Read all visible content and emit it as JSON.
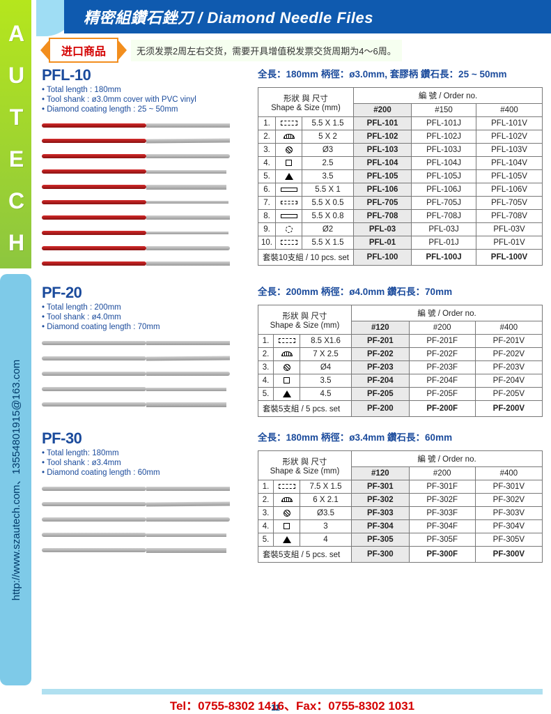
{
  "brand": "AUTECH",
  "brand_colors": {
    "top": "#b5e61d",
    "bottom": "#8dc63f",
    "text": "#ffffff"
  },
  "contact_vert": "http://www.szautech.com、13554801915@163.com",
  "contact_bg": "#7ecae8",
  "header_title": "精密組鑽石銼刀 / Diamond Needle Files",
  "header_bg": "#0f5aaf",
  "ribbon_label": "进口商品",
  "notice_text": "无须发票2周左右交货，需要开具增值税发票交货周期为4～6周。",
  "shape_header": "形狀 與 尺寸\nShape & Size (mm)",
  "order_header": "編 號 / Order no.",
  "page_number": "11",
  "footer_tel": "Tel：0755-8302 1416、Fax：0755-8302 1031",
  "colors": {
    "brand_blue": "#1b4b9c",
    "border": "#777777",
    "grey_fill": "#eaeaea",
    "handle_red": "#c32020",
    "handle_grey": "#b0b0b0"
  },
  "products": [
    {
      "name": "PFL-10",
      "specs": [
        "• Total length : 180mm",
        "• Tool shank : ø3.0mm cover with PVC vinyl",
        "• Diamond coating length : 25 ~ 50mm"
      ],
      "headline": "全長：180mm  柄徑：ø3.0mm, 套膠柄  鑽石長：25 ~ 50mm",
      "handle_color": "red",
      "file_count": 10,
      "grit_cols": [
        "#200",
        "#150",
        "#400"
      ],
      "rows": [
        {
          "n": "1.",
          "shape": "s-dashbox",
          "size": "5.5 X 1.5",
          "codes": [
            "PFL-101",
            "PFL-101J",
            "PFL-101V"
          ]
        },
        {
          "n": "2.",
          "shape": "s-half",
          "size": "5 X 2",
          "codes": [
            "PFL-102",
            "PFL-102J",
            "PFL-102V"
          ]
        },
        {
          "n": "3.",
          "shape": "s-round",
          "size": "Ø3",
          "codes": [
            "PFL-103",
            "PFL-103J",
            "PFL-103V"
          ]
        },
        {
          "n": "4.",
          "shape": "s-square",
          "size": "2.5",
          "codes": [
            "PFL-104",
            "PFL-104J",
            "PFL-104V"
          ]
        },
        {
          "n": "5.",
          "shape": "s-tri",
          "size": "3.5",
          "codes": [
            "PFL-105",
            "PFL-105J",
            "PFL-105V"
          ]
        },
        {
          "n": "6.",
          "shape": "s-barr",
          "size": "5.5 X 1",
          "codes": [
            "PFL-106",
            "PFL-106J",
            "PFL-106V"
          ]
        },
        {
          "n": "7.",
          "shape": "s-barr2",
          "size": "5.5 X 0.5",
          "codes": [
            "PFL-705",
            "PFL-705J",
            "PFL-705V"
          ]
        },
        {
          "n": "8.",
          "shape": "s-barr",
          "size": "5.5 X 0.8",
          "codes": [
            "PFL-708",
            "PFL-708J",
            "PFL-708V"
          ]
        },
        {
          "n": "9.",
          "shape": "s-round2",
          "size": "Ø2",
          "codes": [
            "PFL-03",
            "PFL-03J",
            "PFL-03V"
          ]
        },
        {
          "n": "10.",
          "shape": "s-dashbox",
          "size": "5.5 X 1.5",
          "codes": [
            "PFL-01",
            "PFL-01J",
            "PFL-01V"
          ]
        }
      ],
      "set_label": "套裝10支組 / 10 pcs. set",
      "set_codes": [
        "PFL-100",
        "PFL-100J",
        "PFL-100V"
      ]
    },
    {
      "name": "PF-20",
      "specs": [
        "• Total length : 200mm",
        "• Tool shank : ø4.0mm",
        "• Diamond coating length : 70mm"
      ],
      "headline": "全長：200mm  柄徑：ø4.0mm  鑽石長：70mm",
      "handle_color": "grey",
      "file_count": 5,
      "grit_cols": [
        "#120",
        "#200",
        "#400"
      ],
      "rows": [
        {
          "n": "1.",
          "shape": "s-dashbox",
          "size": "8.5 X1.6",
          "codes": [
            "PF-201",
            "PF-201F",
            "PF-201V"
          ]
        },
        {
          "n": "2.",
          "shape": "s-half",
          "size": "7 X 2.5",
          "codes": [
            "PF-202",
            "PF-202F",
            "PF-202V"
          ]
        },
        {
          "n": "3.",
          "shape": "s-round",
          "size": "Ø4",
          "codes": [
            "PF-203",
            "PF-203F",
            "PF-203V"
          ]
        },
        {
          "n": "4.",
          "shape": "s-square",
          "size": "3.5",
          "codes": [
            "PF-204",
            "PF-204F",
            "PF-204V"
          ]
        },
        {
          "n": "5.",
          "shape": "s-tri",
          "size": "4.5",
          "codes": [
            "PF-205",
            "PF-205F",
            "PF-205V"
          ]
        }
      ],
      "set_label": "套裝5支組 / 5 pcs. set",
      "set_codes": [
        "PF-200",
        "PF-200F",
        "PF-200V"
      ]
    },
    {
      "name": "PF-30",
      "specs": [
        "• Total length: 180mm",
        "• Tool shank : ø3.4mm",
        "• Diamond coating length : 60mm"
      ],
      "headline": "全長：180mm  柄徑：ø3.4mm  鑽石長：60mm",
      "handle_color": "grey",
      "file_count": 5,
      "grit_cols": [
        "#120",
        "#200",
        "#400"
      ],
      "rows": [
        {
          "n": "1.",
          "shape": "s-dashbox",
          "size": "7.5 X 1.5",
          "codes": [
            "PF-301",
            "PF-301F",
            "PF-301V"
          ]
        },
        {
          "n": "2.",
          "shape": "s-half",
          "size": "6 X 2.1",
          "codes": [
            "PF-302",
            "PF-302F",
            "PF-302V"
          ]
        },
        {
          "n": "3.",
          "shape": "s-round",
          "size": "Ø3.5",
          "codes": [
            "PF-303",
            "PF-303F",
            "PF-303V"
          ]
        },
        {
          "n": "4.",
          "shape": "s-square",
          "size": "3",
          "codes": [
            "PF-304",
            "PF-304F",
            "PF-304V"
          ]
        },
        {
          "n": "5.",
          "shape": "s-tri",
          "size": "4",
          "codes": [
            "PF-305",
            "PF-305F",
            "PF-305V"
          ]
        }
      ],
      "set_label": "套裝5支組 / 5 pcs. set",
      "set_codes": [
        "PF-300",
        "PF-300F",
        "PF-300V"
      ]
    }
  ]
}
